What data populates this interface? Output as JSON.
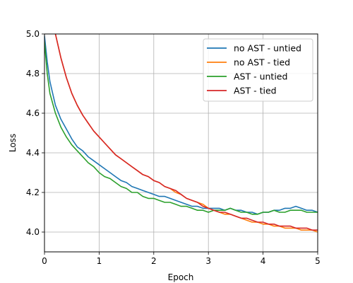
{
  "chart_data": {
    "type": "line",
    "title": "",
    "xlabel": "Epoch",
    "ylabel": "Loss",
    "xlim": [
      0,
      5
    ],
    "ylim": [
      3.9,
      5.0
    ],
    "xticks": [
      "0",
      "1",
      "2",
      "3",
      "4",
      "5"
    ],
    "yticks": [
      "4.0",
      "4.2",
      "4.4",
      "4.6",
      "4.8",
      "5.0"
    ],
    "grid": true,
    "legend_position": "top-right",
    "series": [
      {
        "name": "no AST - untied",
        "color": "#1f77b4",
        "x": [
          0,
          0.05,
          0.1,
          0.2,
          0.3,
          0.4,
          0.5,
          0.6,
          0.7,
          0.8,
          0.9,
          1.0,
          1.1,
          1.2,
          1.3,
          1.4,
          1.5,
          1.6,
          1.7,
          1.8,
          1.9,
          2.0,
          2.1,
          2.2,
          2.3,
          2.4,
          2.5,
          2.6,
          2.7,
          2.8,
          2.9,
          3.0,
          3.1,
          3.2,
          3.3,
          3.4,
          3.5,
          3.6,
          3.7,
          3.8,
          3.9,
          4.0,
          4.1,
          4.2,
          4.3,
          4.4,
          4.5,
          4.6,
          4.7,
          4.8,
          4.9,
          5.0
        ],
        "y": [
          4.99,
          4.86,
          4.76,
          4.64,
          4.57,
          4.52,
          4.47,
          4.43,
          4.41,
          4.38,
          4.36,
          4.34,
          4.32,
          4.3,
          4.28,
          4.26,
          4.25,
          4.23,
          4.22,
          4.21,
          4.2,
          4.19,
          4.18,
          4.18,
          4.17,
          4.16,
          4.15,
          4.14,
          4.13,
          4.13,
          4.12,
          4.12,
          4.12,
          4.12,
          4.11,
          4.12,
          4.11,
          4.11,
          4.1,
          4.1,
          4.09,
          4.1,
          4.1,
          4.11,
          4.11,
          4.12,
          4.12,
          4.13,
          4.12,
          4.11,
          4.11,
          4.1
        ]
      },
      {
        "name": "no AST - tied",
        "color": "#ff7f0e",
        "x": [
          0.2,
          0.3,
          0.4,
          0.5,
          0.6,
          0.7,
          0.8,
          0.9,
          1.0,
          1.1,
          1.2,
          1.3,
          1.4,
          1.5,
          1.6,
          1.7,
          1.8,
          1.9,
          2.0,
          2.1,
          2.2,
          2.3,
          2.4,
          2.5,
          2.6,
          2.7,
          2.8,
          2.9,
          3.0,
          3.1,
          3.2,
          3.3,
          3.4,
          3.5,
          3.6,
          3.7,
          3.8,
          3.9,
          4.0,
          4.1,
          4.2,
          4.3,
          4.4,
          4.5,
          4.6,
          4.7,
          4.8,
          4.9,
          5.0
        ],
        "y": [
          5.0,
          4.88,
          4.78,
          4.7,
          4.64,
          4.59,
          4.55,
          4.51,
          4.48,
          4.45,
          4.42,
          4.39,
          4.37,
          4.35,
          4.33,
          4.31,
          4.29,
          4.28,
          4.26,
          4.25,
          4.23,
          4.22,
          4.2,
          4.19,
          4.17,
          4.16,
          4.15,
          4.14,
          4.12,
          4.11,
          4.1,
          4.09,
          4.09,
          4.08,
          4.07,
          4.06,
          4.05,
          4.05,
          4.04,
          4.04,
          4.03,
          4.03,
          4.02,
          4.02,
          4.02,
          4.01,
          4.01,
          4.01,
          4.0
        ]
      },
      {
        "name": "AST - untied",
        "color": "#2ca02c",
        "x": [
          0,
          0.05,
          0.1,
          0.2,
          0.3,
          0.4,
          0.5,
          0.6,
          0.7,
          0.8,
          0.9,
          1.0,
          1.1,
          1.2,
          1.3,
          1.4,
          1.5,
          1.6,
          1.7,
          1.8,
          1.9,
          2.0,
          2.1,
          2.2,
          2.3,
          2.4,
          2.5,
          2.6,
          2.7,
          2.8,
          2.9,
          3.0,
          3.1,
          3.2,
          3.3,
          3.4,
          3.5,
          3.6,
          3.7,
          3.8,
          3.9,
          4.0,
          4.1,
          4.2,
          4.3,
          4.4,
          4.5,
          4.6,
          4.7,
          4.8,
          4.9,
          5.0
        ],
        "y": [
          4.96,
          4.8,
          4.7,
          4.6,
          4.53,
          4.48,
          4.44,
          4.41,
          4.38,
          4.35,
          4.33,
          4.3,
          4.28,
          4.27,
          4.25,
          4.23,
          4.22,
          4.2,
          4.2,
          4.18,
          4.17,
          4.17,
          4.16,
          4.15,
          4.15,
          4.14,
          4.13,
          4.13,
          4.12,
          4.11,
          4.11,
          4.1,
          4.11,
          4.11,
          4.11,
          4.12,
          4.11,
          4.1,
          4.1,
          4.09,
          4.09,
          4.1,
          4.1,
          4.11,
          4.1,
          4.1,
          4.11,
          4.11,
          4.11,
          4.1,
          4.1,
          4.1
        ]
      },
      {
        "name": "AST - tied",
        "color": "#d62728",
        "x": [
          0.2,
          0.3,
          0.4,
          0.5,
          0.6,
          0.7,
          0.8,
          0.9,
          1.0,
          1.1,
          1.2,
          1.3,
          1.4,
          1.5,
          1.6,
          1.7,
          1.8,
          1.9,
          2.0,
          2.1,
          2.2,
          2.3,
          2.4,
          2.5,
          2.6,
          2.7,
          2.8,
          2.9,
          3.0,
          3.1,
          3.2,
          3.3,
          3.4,
          3.5,
          3.6,
          3.7,
          3.8,
          3.9,
          4.0,
          4.1,
          4.2,
          4.3,
          4.4,
          4.5,
          4.6,
          4.7,
          4.8,
          4.9,
          5.0
        ],
        "y": [
          5.0,
          4.88,
          4.78,
          4.7,
          4.64,
          4.59,
          4.55,
          4.51,
          4.48,
          4.45,
          4.42,
          4.39,
          4.37,
          4.35,
          4.33,
          4.31,
          4.29,
          4.28,
          4.26,
          4.25,
          4.23,
          4.22,
          4.21,
          4.19,
          4.17,
          4.16,
          4.15,
          4.13,
          4.12,
          4.11,
          4.1,
          4.1,
          4.09,
          4.08,
          4.07,
          4.07,
          4.06,
          4.05,
          4.05,
          4.04,
          4.04,
          4.03,
          4.03,
          4.03,
          4.02,
          4.02,
          4.02,
          4.01,
          4.01
        ]
      }
    ]
  }
}
